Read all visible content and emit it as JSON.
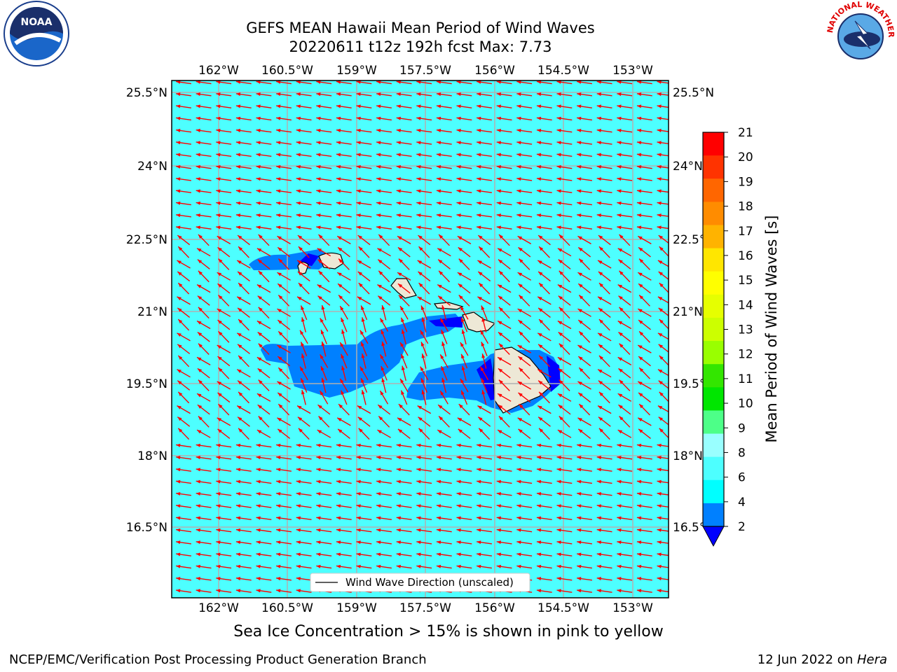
{
  "header": {
    "title_line1": "GEFS MEAN Hawaii Mean Period of Wind Waves",
    "title_line2": "20220611 t12z 192h fcst   Max: 7.73"
  },
  "logos": {
    "left": {
      "icon": "noaa-logo-icon",
      "text": "NOAA"
    },
    "right": {
      "icon": "nws-logo-icon",
      "text": "NATIONAL WEATHER SERVICE"
    }
  },
  "map": {
    "lon_labels": [
      "162°W",
      "160.5°W",
      "159°W",
      "157.5°W",
      "156°W",
      "154.5°W",
      "153°W"
    ],
    "lat_labels": [
      "25.5°N",
      "24°N",
      "22.5°N",
      "21°N",
      "19.5°N",
      "18°N",
      "16.5°N"
    ],
    "legend_label": "Wind Wave Direction (unscaled)",
    "arrow_color": "#ff0000",
    "ocean_color": "#4dffff",
    "land_color": "#ede8d6"
  },
  "colorbar": {
    "label": "Mean Period of Wind Waves [s]",
    "ticks": [
      "21",
      "20",
      "19",
      "18",
      "17",
      "16",
      "15",
      "14",
      "13",
      "12",
      "11",
      "10",
      "9",
      "8",
      "6",
      "4",
      "2"
    ],
    "colors": [
      "#ff0000",
      "#ff3300",
      "#ff6600",
      "#ff8c00",
      "#ffb300",
      "#ffe600",
      "#ffff00",
      "#e6ff00",
      "#ccff00",
      "#99ff00",
      "#33e600",
      "#00e600",
      "#4dff88",
      "#99ffff",
      "#4dffff",
      "#00ffff",
      "#0080ff"
    ],
    "under_color": "#0000ff"
  },
  "caption": "Sea Ice Concentration > 15% is shown in pink to yellow",
  "footer": {
    "left": "NCEP/EMC/Verification Post Processing Product Generation Branch",
    "right_prefix": "12 Jun 2022 on ",
    "right_host": "Hera"
  }
}
